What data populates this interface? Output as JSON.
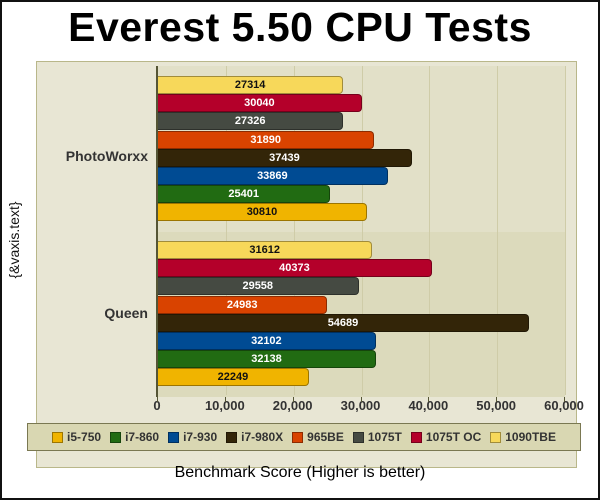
{
  "chart_data": {
    "type": "bar",
    "orientation": "horizontal",
    "title": "Everest 5.50 CPU Tests",
    "xlabel": "Benchmark Score (Higher is better)",
    "ylabel": "{&vaxis.text}",
    "xlim": [
      0,
      60000
    ],
    "xticks": [
      "0",
      "10,000",
      "20,000",
      "30,000",
      "40,000",
      "50,000",
      "60,000"
    ],
    "grid": true,
    "legend_position": "bottom",
    "categories": [
      "PhotoWorxx",
      "Queen"
    ],
    "series": [
      {
        "name": "i5-750",
        "color": "#f0b400",
        "values": [
          30810,
          22249
        ]
      },
      {
        "name": "i7-860",
        "color": "#216b12",
        "values": [
          25401,
          32138
        ]
      },
      {
        "name": "i7-930",
        "color": "#004b93",
        "values": [
          33869,
          32102
        ]
      },
      {
        "name": "i7-980X",
        "color": "#332508",
        "values": [
          37439,
          54689
        ]
      },
      {
        "name": "965BE",
        "color": "#d94300",
        "values": [
          31890,
          24983
        ]
      },
      {
        "name": "1075T",
        "color": "#454a42",
        "values": [
          27326,
          29558
        ]
      },
      {
        "name": "1075T OC",
        "color": "#b4002a",
        "values": [
          30040,
          40373
        ]
      },
      {
        "name": "1090TBE",
        "color": "#f7d85a",
        "values": [
          27314,
          31612
        ]
      }
    ]
  },
  "labels": {
    "photoworxx": [
      "27314",
      "30040",
      "27326",
      "31890",
      "37439",
      "33869",
      "25401",
      "30810"
    ],
    "queen": [
      "31612",
      "40373",
      "29558",
      "24983",
      "54689",
      "32102",
      "32138",
      "22249"
    ]
  }
}
